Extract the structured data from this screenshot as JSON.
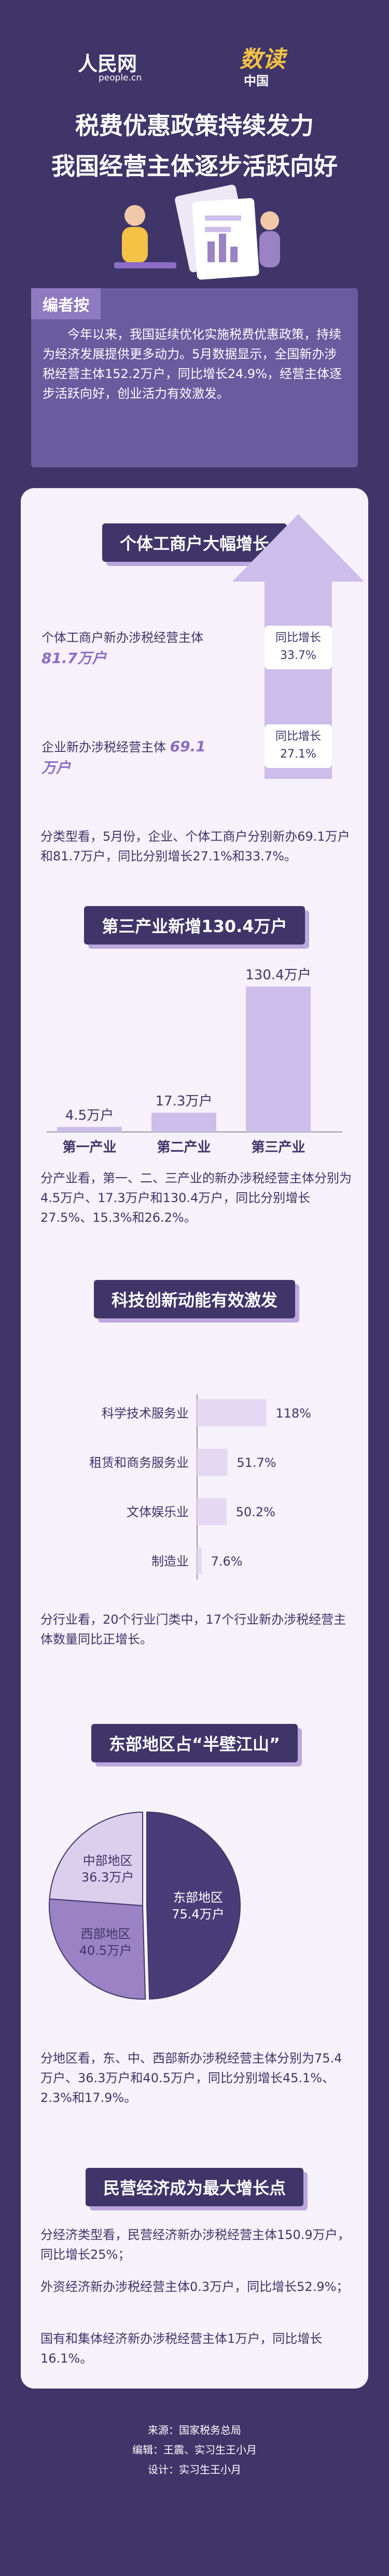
{
  "header": {
    "logo_left": "人民网",
    "logo_left_sub": "people.cn",
    "logo_right": "数读",
    "logo_right_sub": "中国"
  },
  "title": [
    "税费优惠政策持续发力",
    "我国经营主体逐步活跃向好"
  ],
  "editor_note": {
    "label": "编者按",
    "text": "今年以来，我国延续优化实施税费优惠政策，持续为经济发展提供更多动力。5月数据显示，全国新办涉税经营主体152.2万户，同比增长24.9%，经营主体逐步活跃向好，创业活力有效激发。"
  },
  "section1": {
    "title": "个体工商户大幅增长",
    "items": [
      {
        "label": "个体工商户新办涉税经营主体",
        "value": "81.7万户",
        "growth_label": "同比增长",
        "growth": "33.7%"
      },
      {
        "label": "企业新办涉税经营主体",
        "value": "69.1万户",
        "growth_label": "同比增长",
        "growth": "27.1%"
      }
    ],
    "text": "分类型看，5月份，企业、个体工商户分别新办69.1万户和81.7万户，同比分别增长27.1%和33.7%。"
  },
  "chart_data": [
    {
      "type": "bar",
      "title": "第三产业新增130.4万户",
      "categories": [
        "第一产业",
        "第二产业",
        "第三产业"
      ],
      "values": [
        4.5,
        17.3,
        130.4
      ],
      "value_labels": [
        "4.5万户",
        "17.3万户",
        "130.4万户"
      ],
      "color": "#cdbdea",
      "caption": "分产业看，第一、二、三产业的新办涉税经营主体分别为4.5万户、17.3万户和130.4万户，同比分别增长27.5%、15.3%和26.2%。"
    },
    {
      "type": "hbar",
      "title": "科技创新动能有效激发",
      "categories": [
        "科学技术服务业",
        "租赁和商务服务业",
        "文体娱乐业",
        "制造业"
      ],
      "values": [
        118,
        51.7,
        50.2,
        7.6
      ],
      "value_labels": [
        "118%",
        "51.7%",
        "50.2%",
        "7.6%"
      ],
      "color": "#e4d8f3",
      "caption": "分行业看，20个行业门类中，17个行业新办涉税经营主体数量同比正增长。"
    },
    {
      "type": "pie",
      "title": "东部地区占“半壁江山”",
      "categories": [
        "东部地区",
        "西部地区",
        "中部地区"
      ],
      "values": [
        75.4,
        40.5,
        36.3
      ],
      "value_labels": [
        "75.4万户",
        "40.5万户",
        "36.3万户"
      ],
      "colors": [
        "#4a3c78",
        "#9a82c4",
        "#dccfee"
      ],
      "caption": "分地区看，东、中、西部新办涉税经营主体分别为75.4万户、36.3万户和40.5万户，同比分别增长45.1%、2.3%和17.9%。"
    }
  ],
  "section5": {
    "title": "民营经济成为最大增长点",
    "paragraphs": [
      "分经济类型看，民营经济新办涉税经营主体150.9万户，同比增长25%；",
      "外资经济新办涉税经营主体0.3万户，同比增长52.9%；",
      "国有和集体经济新办涉税经营主体1万户，同比增长16.1%。"
    ]
  },
  "footer": {
    "source": "来源：国家税务总局",
    "editor": "编辑：王震、实习生王小月",
    "design": "设计：实习生王小月"
  }
}
